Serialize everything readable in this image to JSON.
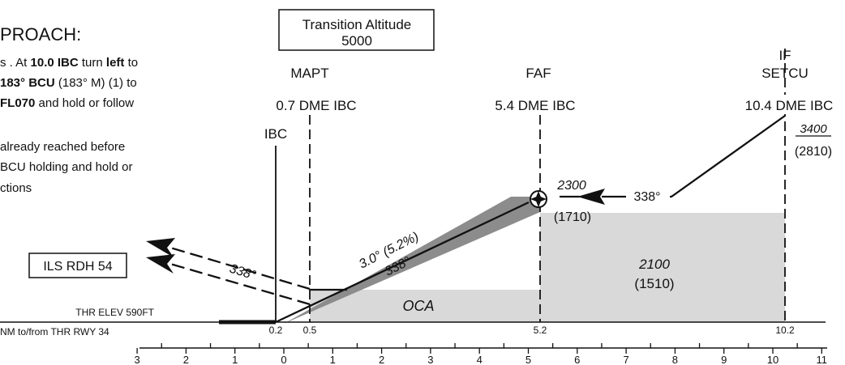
{
  "title": "PROACH:",
  "instructions": {
    "line1_pre": "s . At ",
    "line1_b1": "10.0 IBC",
    "line1_mid": " turn ",
    "line1_b2": "left",
    "line1_post": " to",
    "line2_b": "183° BCU",
    "line2_post": " (183° M) (1)  to",
    "line3_b": "FL070",
    "line3_post": " and hold or follow",
    "line4": "already reached before",
    "line5": "BCU holding and hold or",
    "line6": "ctions"
  },
  "transition_altitude": {
    "label": "Transition Altitude",
    "value": "5000"
  },
  "fixes": {
    "mapt": {
      "name": "MAPT",
      "dme": "0.7 DME IBC"
    },
    "faf": {
      "name": "FAF",
      "dme": "5.4 DME IBC"
    },
    "if": {
      "name": "IF",
      "name2": "SETCU",
      "dme": "10.4 DME IBC"
    },
    "ibc": {
      "name": "IBC"
    }
  },
  "altitudes": {
    "if_alt": "3400",
    "if_height": "(2810)",
    "faf_alt": "2300",
    "faf_height": "(1710)",
    "msa_alt": "2100",
    "msa_height": "(1510)",
    "oca": "OCA"
  },
  "glidepath": {
    "angle": "3.0° (5.2%)",
    "course": "338°"
  },
  "inbound_course": "338°",
  "missed_course": "338°",
  "ils_rdh": "ILS RDH 54",
  "thr_elev": "THR ELEV 590FT",
  "nm_label": "NM to/from THR RWY 34",
  "distance_marks": [
    "0.2",
    "0.5",
    "5.2",
    "10.2"
  ],
  "scale_numbers": [
    "3",
    "2",
    "1",
    "0",
    "1",
    "2",
    "3",
    "4",
    "5",
    "6",
    "7",
    "8",
    "9",
    "10",
    "11"
  ],
  "colors": {
    "shade": "#d9d9d9",
    "glideslope_band": "#8c8c8c",
    "ink": "#111111"
  }
}
